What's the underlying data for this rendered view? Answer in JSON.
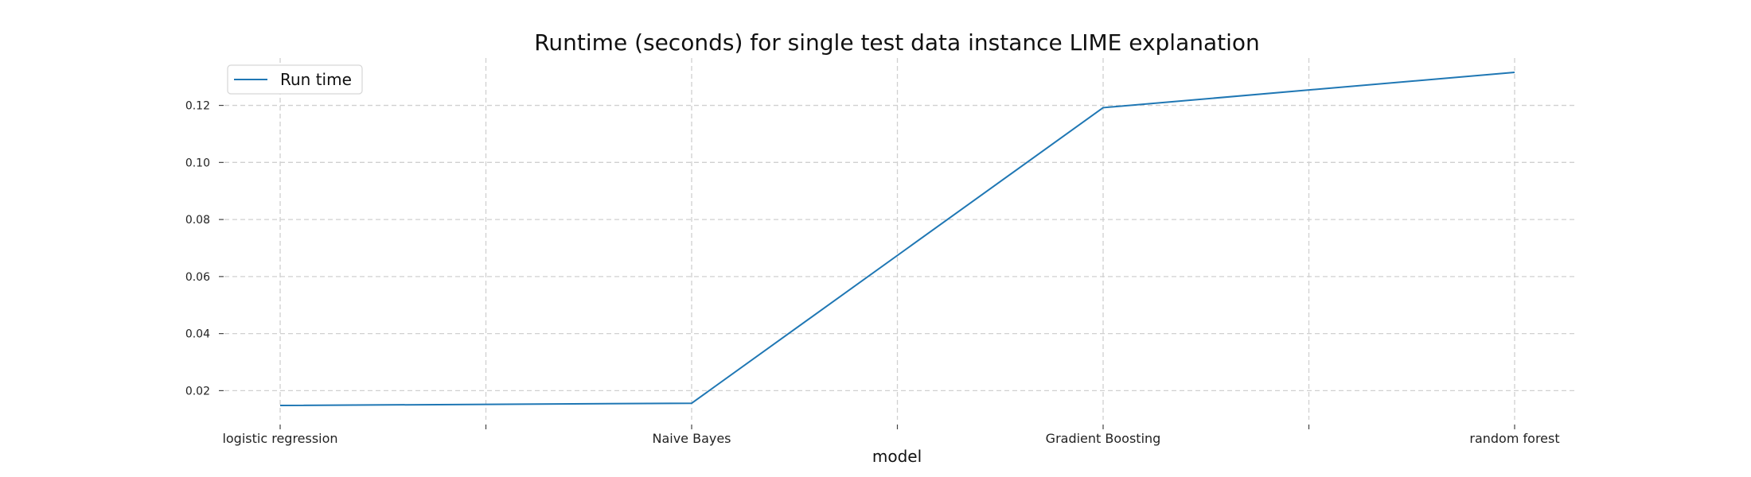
{
  "chart_data": {
    "type": "line",
    "title": "Runtime (seconds) for single test data instance LIME explanation",
    "xlabel": "model",
    "ylabel": "",
    "categories": [
      "logistic regression",
      "Naive Bayes",
      "Gradient Boosting",
      "random forest"
    ],
    "series": [
      {
        "name": "Run time",
        "color": "#1f77b4",
        "values": [
          0.0148,
          0.0156,
          0.1192,
          0.1316
        ]
      }
    ],
    "yticks": [
      0.02,
      0.04,
      0.06,
      0.08,
      0.1,
      0.12
    ],
    "ytick_labels": [
      "0.02",
      "0.04",
      "0.06",
      "0.08",
      "0.10",
      "0.12"
    ],
    "ylim": [
      0.0098,
      0.1366
    ],
    "grid": true,
    "legend": "top-left"
  }
}
